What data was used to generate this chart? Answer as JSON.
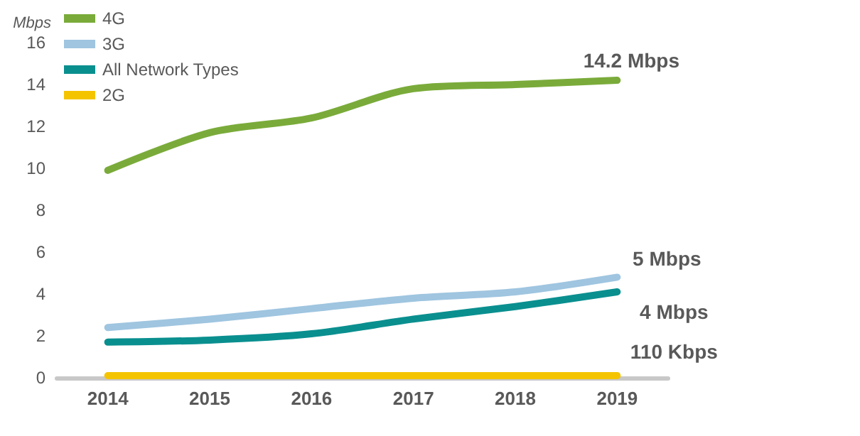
{
  "chart_data": {
    "type": "line",
    "ylabel": "Mbps",
    "categories": [
      "2014",
      "2015",
      "2016",
      "2017",
      "2018",
      "2019"
    ],
    "series": [
      {
        "name": "4G",
        "color": "#7aab3a",
        "values": [
          9.9,
          11.7,
          12.4,
          13.8,
          14.0,
          14.2
        ]
      },
      {
        "name": "3G",
        "color": "#9fc5e0",
        "values": [
          2.4,
          2.8,
          3.3,
          3.8,
          4.1,
          4.8
        ]
      },
      {
        "name": "All Network Types",
        "color": "#0a8f8f",
        "values": [
          1.7,
          1.8,
          2.1,
          2.8,
          3.4,
          4.1
        ]
      },
      {
        "name": "2G",
        "color": "#f5c400",
        "values": [
          0.1,
          0.1,
          0.1,
          0.1,
          0.1,
          0.1
        ]
      }
    ],
    "ylim": [
      0,
      16
    ],
    "yticks": [
      0,
      2,
      4,
      6,
      8,
      10,
      12,
      14,
      16
    ],
    "grid": false,
    "legend": "top left",
    "marker": "none",
    "line_style": "solid",
    "annotations": [
      {
        "text": "14.2 Mbps",
        "x": "2019",
        "y": 14.2
      },
      {
        "text": "5 Mbps",
        "x": "2019",
        "y": 4.8
      },
      {
        "text": "4 Mbps",
        "x": "2019",
        "y": 4.1
      },
      {
        "text": "110 Kbps",
        "x": "2019",
        "y": 0.1
      }
    ]
  }
}
